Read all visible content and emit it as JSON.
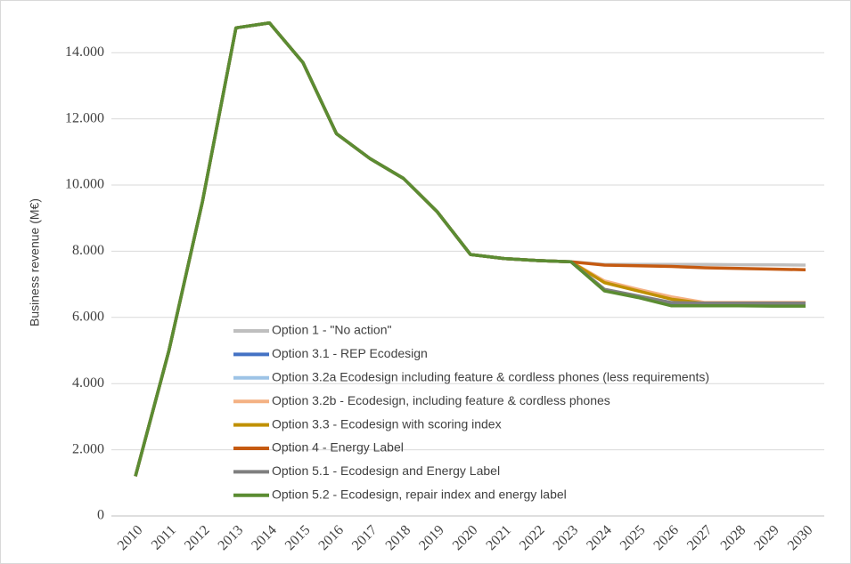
{
  "chart_data": {
    "type": "line",
    "y_label": "Business revenue (M€)",
    "categories": [
      "2010",
      "2011",
      "2012",
      "2013",
      "2014",
      "2015",
      "2016",
      "2017",
      "2018",
      "2019",
      "2020",
      "2021",
      "2022",
      "2023",
      "2024",
      "2025",
      "2026",
      "2027",
      "2028",
      "2029",
      "2030"
    ],
    "series": [
      {
        "name": "Option 1 - \"No action\"",
        "color": "#bfbfbf",
        "values": [
          1200,
          5000,
          9500,
          14750,
          14900,
          13700,
          11550,
          10800,
          10200,
          9200,
          7900,
          7780,
          7720,
          7680,
          7600,
          7600,
          7600,
          7600,
          7590,
          7590,
          7580
        ]
      },
      {
        "name": "Option 3.1 - REP Ecodesign",
        "color": "#4472c4",
        "values": [
          1200,
          5000,
          9500,
          14750,
          14900,
          13700,
          11550,
          10800,
          10200,
          9200,
          7900,
          7780,
          7720,
          7680,
          6820,
          6620,
          6380,
          6370,
          6360,
          6360,
          6350
        ]
      },
      {
        "name": "Option 3.2a Ecodesign including feature & cordless phones (less requirements)",
        "color": "#9dc3e6",
        "values": [
          1200,
          5000,
          9500,
          14750,
          14900,
          13700,
          11550,
          10800,
          10200,
          9200,
          7900,
          7780,
          7720,
          7680,
          7080,
          6830,
          6600,
          6440,
          6440,
          6440,
          6440
        ]
      },
      {
        "name": "Option 3.2b -  Ecodesign, including feature & cordless phones",
        "color": "#f4b183",
        "values": [
          1200,
          5000,
          9500,
          14750,
          14900,
          13700,
          11550,
          10800,
          10200,
          9200,
          7900,
          7780,
          7720,
          7680,
          7100,
          6850,
          6620,
          6450,
          6450,
          6450,
          6450
        ]
      },
      {
        "name": "Option 3.3 - Ecodesign with scoring index",
        "color": "#bf9000",
        "values": [
          1200,
          5000,
          9500,
          14750,
          14900,
          13700,
          11550,
          10800,
          10200,
          9200,
          7900,
          7780,
          7720,
          7680,
          7050,
          6800,
          6550,
          6420,
          6420,
          6420,
          6420
        ]
      },
      {
        "name": "Option 4 - Energy Label",
        "color": "#c55a11",
        "values": [
          1200,
          5000,
          9500,
          14750,
          14900,
          13700,
          11550,
          10800,
          10200,
          9200,
          7900,
          7780,
          7720,
          7680,
          7580,
          7560,
          7540,
          7500,
          7480,
          7460,
          7440
        ]
      },
      {
        "name": "Option 5.1 - Ecodesign and Energy Label",
        "color": "#7f7f7f",
        "values": [
          1200,
          5000,
          9500,
          14750,
          14900,
          13700,
          11550,
          10800,
          10200,
          9200,
          7900,
          7780,
          7720,
          7680,
          6850,
          6650,
          6450,
          6430,
          6430,
          6430,
          6430
        ]
      },
      {
        "name": "Option 5.2 - Ecodesign, repair index and energy label",
        "color": "#5b8c32",
        "values": [
          1200,
          5000,
          9500,
          14750,
          14900,
          13700,
          11550,
          10800,
          10200,
          9200,
          7900,
          7780,
          7720,
          7680,
          6800,
          6600,
          6350,
          6350,
          6350,
          6340,
          6340
        ]
      }
    ],
    "ylim": [
      0,
      15000
    ],
    "yticks": [
      0,
      {
        "value": 2000,
        "label": "2.000"
      },
      {
        "value": 4000,
        "label": "4.000"
      },
      {
        "value": 6000,
        "label": "6.000"
      },
      {
        "value": 8000,
        "label": "8.000"
      },
      {
        "value": 10000,
        "label": "10.000"
      },
      {
        "value": 12000,
        "label": "12.000"
      },
      {
        "value": 14000,
        "label": "14.000"
      }
    ],
    "grid": true
  }
}
